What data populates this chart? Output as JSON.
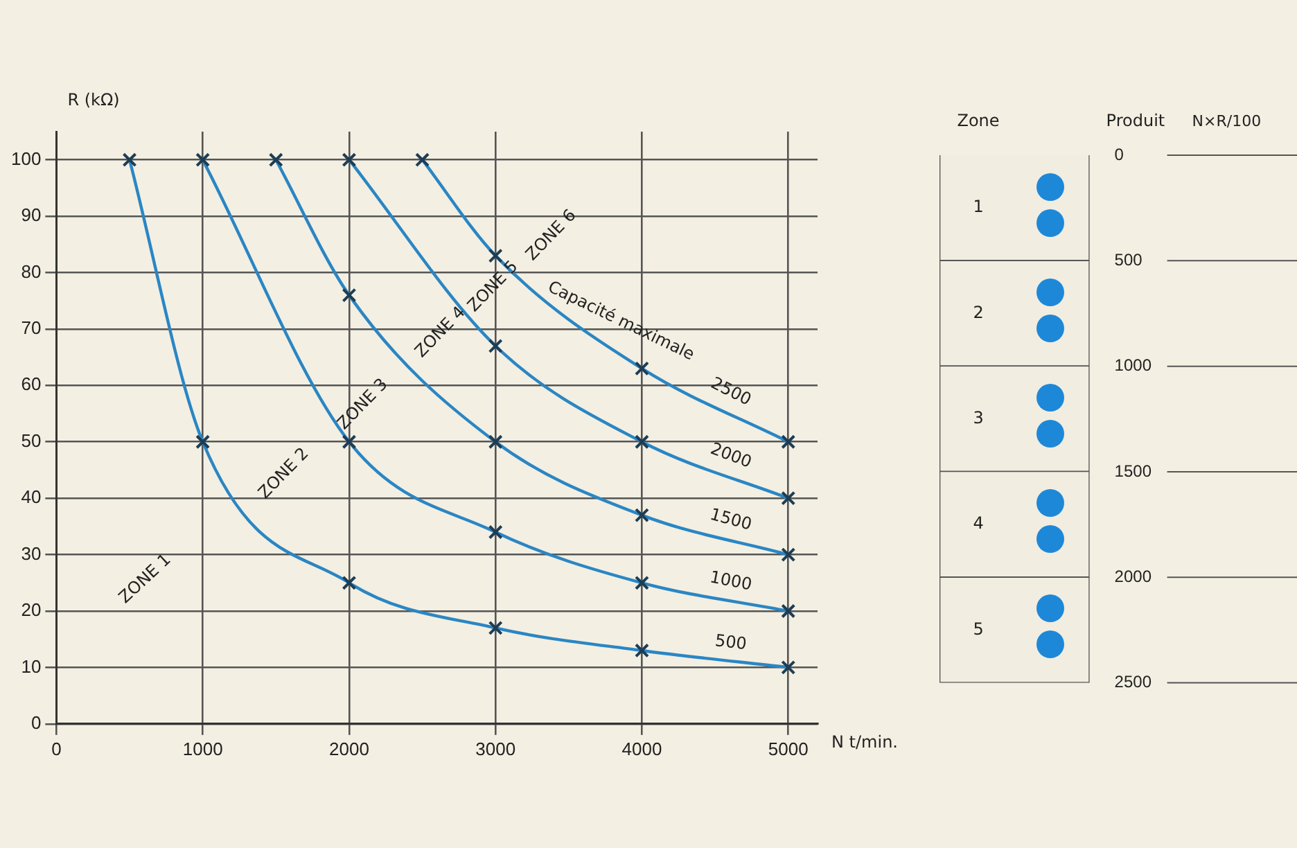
{
  "chart_data": [
    {
      "type": "line",
      "xlabel": "N t/min.",
      "ylabel": "R (kΩ)",
      "xlim": [
        0,
        5200
      ],
      "xticks": [
        0,
        1000,
        2000,
        3000,
        4000,
        5000
      ],
      "ylim": [
        0,
        105
      ],
      "yticks": [
        0,
        10,
        20,
        30,
        40,
        50,
        60,
        70,
        80,
        90,
        100
      ],
      "grid": true,
      "legend": false,
      "marker": "cross",
      "line_style": "solid",
      "series": [
        {
          "name": "500",
          "color": "#2a86c4",
          "x": [
            500,
            1000,
            2000,
            3000,
            4000,
            5000
          ],
          "values": [
            100,
            50,
            25,
            17,
            13,
            10
          ]
        },
        {
          "name": "1000",
          "color": "#2a86c4",
          "x": [
            1000,
            2000,
            3000,
            4000,
            5000
          ],
          "values": [
            100,
            50,
            34,
            25,
            20
          ]
        },
        {
          "name": "1500",
          "color": "#2a86c4",
          "x": [
            1500,
            2000,
            3000,
            4000,
            5000
          ],
          "values": [
            100,
            76,
            50,
            37,
            30
          ]
        },
        {
          "name": "2000",
          "color": "#2a86c4",
          "x": [
            2000,
            3000,
            4000,
            5000
          ],
          "values": [
            100,
            67,
            50,
            40
          ]
        },
        {
          "name": "2500",
          "color": "#2a86c4",
          "x": [
            2500,
            3000,
            4000,
            5000
          ],
          "values": [
            100,
            83,
            63,
            50
          ]
        }
      ],
      "annotations": [
        "ZONE 1",
        "ZONE 2",
        "ZONE 3",
        "ZONE 4",
        "ZONE 5",
        "ZONE 6",
        "Capacité maximale"
      ]
    },
    {
      "type": "bar",
      "stacked": true,
      "xlabel": "Zone",
      "ylabel": "Produit",
      "y2label": "N×R/100",
      "legend": false,
      "grid": "y",
      "categories": [
        null
      ],
      "ylim": [
        2500,
        0
      ],
      "yticks": [
        0,
        500,
        1000,
        1500,
        2000,
        2500
      ],
      "series": [
        {
          "name": "1",
          "color": "#f1ede0",
          "values": [
            500
          ]
        },
        {
          "name": "2",
          "color": "#f1ede0",
          "values": [
            500
          ]
        },
        {
          "name": "3",
          "color": "#f1ede0",
          "values": [
            500
          ]
        },
        {
          "name": "4",
          "color": "#f1ede0",
          "values": [
            500
          ]
        },
        {
          "name": "5",
          "color": "#f1ede0",
          "values": [
            500
          ]
        }
      ]
    }
  ]
}
